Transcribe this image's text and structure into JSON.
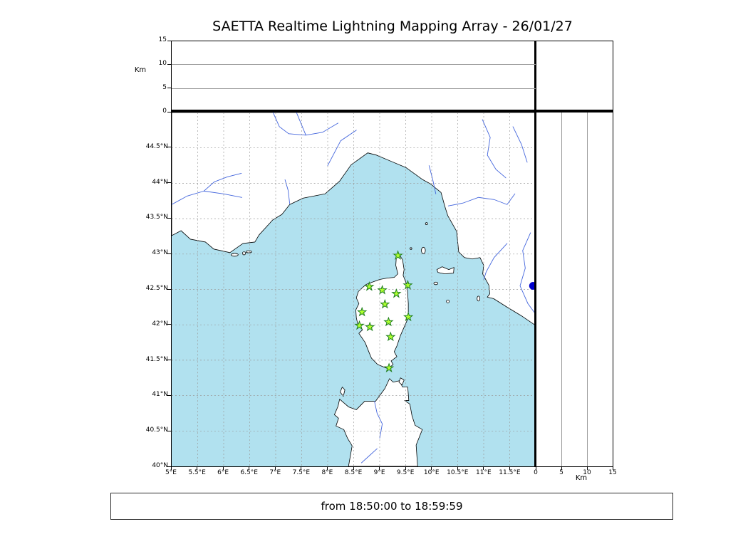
{
  "title": "SAETTA Realtime Lightning Mapping Array - 26/01/27",
  "caption": "from 18:50:00 to 18:59:59",
  "map_panel": {
    "lon_min": 5,
    "lon_max": 12,
    "lat_min": 40,
    "lat_max": 45,
    "lon_ticks": [
      {
        "value": 5,
        "label": "5°E"
      },
      {
        "value": 5.5,
        "label": "5.5°E"
      },
      {
        "value": 6,
        "label": "6°E"
      },
      {
        "value": 6.5,
        "label": "6.5°E"
      },
      {
        "value": 7,
        "label": "7°E"
      },
      {
        "value": 7.5,
        "label": "7.5°E"
      },
      {
        "value": 8,
        "label": "8°E"
      },
      {
        "value": 8.5,
        "label": "8.5°E"
      },
      {
        "value": 9,
        "label": "9°E"
      },
      {
        "value": 9.5,
        "label": "9.5°E"
      },
      {
        "value": 10,
        "label": "10°E"
      },
      {
        "value": 10.5,
        "label": "10.5°E"
      },
      {
        "value": 11,
        "label": "11°E"
      },
      {
        "value": 11.5,
        "label": "11.5°E"
      }
    ],
    "lat_ticks": [
      {
        "value": 40,
        "label": "40°N"
      },
      {
        "value": 40.5,
        "label": "40.5°N"
      },
      {
        "value": 41,
        "label": "41°N"
      },
      {
        "value": 41.5,
        "label": "41.5°N"
      },
      {
        "value": 42,
        "label": "42°N"
      },
      {
        "value": 42.5,
        "label": "42.5°N"
      },
      {
        "value": 43,
        "label": "43°N"
      },
      {
        "value": 43.5,
        "label": "43.5°N"
      },
      {
        "value": 44,
        "label": "44°N"
      },
      {
        "value": 44.5,
        "label": "44.5°N"
      }
    ]
  },
  "altitude_panel": {
    "label": "Km",
    "min": 0,
    "max": 15,
    "ticks": [
      {
        "value": 0,
        "label": "0"
      },
      {
        "value": 5,
        "label": "5"
      },
      {
        "value": 10,
        "label": "10"
      },
      {
        "value": 15,
        "label": "15"
      }
    ]
  },
  "right_panel": {
    "label": "Km",
    "min": 0,
    "max": 15,
    "ticks": [
      {
        "value": 0,
        "label": "0"
      },
      {
        "value": 5,
        "label": "5"
      },
      {
        "value": 10,
        "label": "10"
      },
      {
        "value": 15,
        "label": "15"
      }
    ]
  },
  "map_data": {
    "stations": [
      {
        "lon": 9.35,
        "lat": 42.98
      },
      {
        "lon": 8.8,
        "lat": 42.54
      },
      {
        "lon": 9.05,
        "lat": 42.49
      },
      {
        "lon": 9.32,
        "lat": 42.44
      },
      {
        "lon": 9.54,
        "lat": 42.56
      },
      {
        "lon": 9.1,
        "lat": 42.29
      },
      {
        "lon": 8.66,
        "lat": 42.18
      },
      {
        "lon": 9.55,
        "lat": 42.11
      },
      {
        "lon": 8.61,
        "lat": 41.99
      },
      {
        "lon": 8.81,
        "lat": 41.97
      },
      {
        "lon": 9.17,
        "lat": 42.04
      },
      {
        "lon": 9.21,
        "lat": 41.83
      },
      {
        "lon": 9.18,
        "lat": 41.39
      }
    ],
    "event_marker": {
      "lon": 11.95,
      "lat": 42.55
    }
  },
  "colors": {
    "sea": "#b1e1ef",
    "land": "#ffffff",
    "coastline": "#000000",
    "river": "#4466dd",
    "grid": "#9a9a9a",
    "station_fill": "#adff2f",
    "station_edge": "#1e7d1e",
    "event_marker": "#0000cd"
  }
}
